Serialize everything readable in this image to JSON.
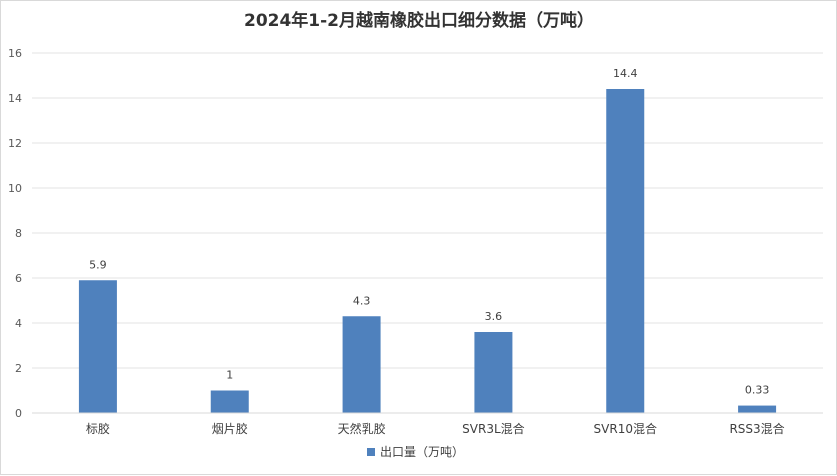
{
  "chart_data": {
    "type": "bar",
    "title": "2024年1-2月越南橡胶出口细分数据（万吨）",
    "categories": [
      "标胶",
      "烟片胶",
      "天然乳胶",
      "SVR3L混合",
      "SVR10混合",
      "RSS3混合"
    ],
    "series": [
      {
        "name": "出口量（万吨）",
        "values": [
          5.9,
          1,
          4.3,
          3.6,
          14.4,
          0.33
        ],
        "labels": [
          "5.9",
          "1",
          "4.3",
          "3.6",
          "14.4",
          "0.33"
        ],
        "color": "#4f81bd"
      }
    ],
    "ylim": [
      0,
      16
    ],
    "yticks": [
      0,
      2,
      4,
      6,
      8,
      10,
      12,
      14,
      16
    ],
    "grid": true,
    "legend": "bottom"
  }
}
